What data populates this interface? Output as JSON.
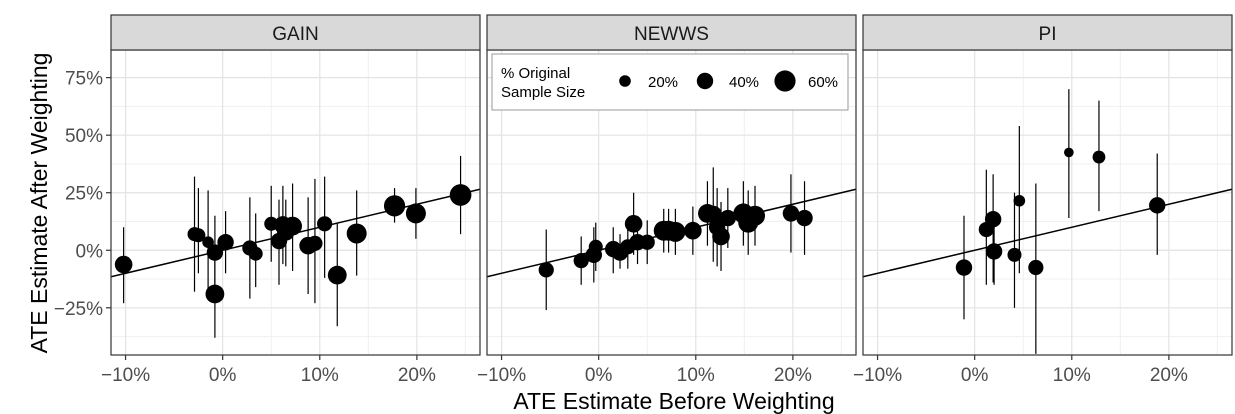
{
  "chart_data": {
    "type": "scatter",
    "xlabel": "ATE Estimate Before Weighting",
    "ylabel": "ATE Estimate After Weighting",
    "xlim": [
      -0.115,
      0.265
    ],
    "ylim": [
      -0.455,
      0.87
    ],
    "x_ticks": [
      {
        "value": -0.1,
        "label": "−10%"
      },
      {
        "value": 0.0,
        "label": "0%"
      },
      {
        "value": 0.1,
        "label": "10%"
      },
      {
        "value": 0.2,
        "label": "20%"
      }
    ],
    "y_ticks": [
      {
        "value": -0.25,
        "label": "−25%"
      },
      {
        "value": 0.0,
        "label": "0%"
      },
      {
        "value": 0.25,
        "label": "25%"
      },
      {
        "value": 0.5,
        "label": "50%"
      },
      {
        "value": 0.75,
        "label": "75%"
      }
    ],
    "grid": true,
    "legend": {
      "title_line1": "% Original",
      "title_line2": "Sample Size",
      "placement": "inside top-left of NEWWS panel",
      "entries": [
        {
          "size": 0.2,
          "label": "20%"
        },
        {
          "size": 0.4,
          "label": "40%"
        },
        {
          "size": 0.6,
          "label": "60%"
        }
      ]
    },
    "trend_line": {
      "intercept": 0.0,
      "slope": 1.0
    },
    "panels": [
      {
        "name": "GAIN",
        "points": [
          {
            "x": -0.102,
            "y": -0.062,
            "lo": -0.23,
            "hi": 0.1,
            "size": 0.45
          },
          {
            "x": -0.029,
            "y": 0.07,
            "lo": -0.18,
            "hi": 0.32,
            "size": 0.3
          },
          {
            "x": -0.025,
            "y": 0.065,
            "lo": -0.1,
            "hi": 0.27,
            "size": 0.3
          },
          {
            "x": -0.015,
            "y": 0.035,
            "lo": -0.18,
            "hi": 0.26,
            "size": 0.2
          },
          {
            "x": -0.008,
            "y": -0.19,
            "lo": -0.38,
            "hi": 0.01,
            "size": 0.5
          },
          {
            "x": -0.008,
            "y": -0.01,
            "lo": -0.16,
            "hi": 0.15,
            "size": 0.4
          },
          {
            "x": 0.003,
            "y": 0.035,
            "lo": -0.1,
            "hi": 0.17,
            "size": 0.4
          },
          {
            "x": 0.028,
            "y": 0.01,
            "lo": -0.21,
            "hi": 0.23,
            "size": 0.35
          },
          {
            "x": 0.034,
            "y": -0.015,
            "lo": -0.16,
            "hi": 0.16,
            "size": 0.3
          },
          {
            "x": 0.05,
            "y": 0.115,
            "lo": -0.05,
            "hi": 0.28,
            "size": 0.3
          },
          {
            "x": 0.058,
            "y": 0.04,
            "lo": -0.15,
            "hi": 0.22,
            "size": 0.4
          },
          {
            "x": 0.062,
            "y": 0.11,
            "lo": -0.06,
            "hi": 0.28,
            "size": 0.45
          },
          {
            "x": 0.065,
            "y": 0.08,
            "lo": -0.07,
            "hi": 0.22,
            "size": 0.45
          },
          {
            "x": 0.072,
            "y": 0.105,
            "lo": -0.09,
            "hi": 0.29,
            "size": 0.5
          },
          {
            "x": 0.088,
            "y": 0.02,
            "lo": -0.19,
            "hi": 0.23,
            "size": 0.45
          },
          {
            "x": 0.095,
            "y": 0.03,
            "lo": -0.23,
            "hi": 0.31,
            "size": 0.35
          },
          {
            "x": 0.105,
            "y": 0.115,
            "lo": -0.12,
            "hi": 0.32,
            "size": 0.35
          },
          {
            "x": 0.118,
            "y": -0.108,
            "lo": -0.33,
            "hi": 0.12,
            "size": 0.5
          },
          {
            "x": 0.138,
            "y": 0.073,
            "lo": -0.11,
            "hi": 0.26,
            "size": 0.55
          },
          {
            "x": 0.177,
            "y": 0.193,
            "lo": 0.12,
            "hi": 0.27,
            "size": 0.6
          },
          {
            "x": 0.199,
            "y": 0.16,
            "lo": 0.05,
            "hi": 0.27,
            "size": 0.55
          },
          {
            "x": 0.245,
            "y": 0.24,
            "lo": 0.07,
            "hi": 0.41,
            "size": 0.62
          }
        ]
      },
      {
        "name": "NEWWS",
        "points": [
          {
            "x": -0.054,
            "y": -0.085,
            "lo": -0.26,
            "hi": 0.09,
            "size": 0.35
          },
          {
            "x": -0.018,
            "y": -0.045,
            "lo": -0.15,
            "hi": 0.06,
            "size": 0.35
          },
          {
            "x": -0.005,
            "y": -0.02,
            "lo": -0.14,
            "hi": 0.1,
            "size": 0.4
          },
          {
            "x": -0.003,
            "y": 0.015,
            "lo": -0.09,
            "hi": 0.12,
            "size": 0.3
          },
          {
            "x": 0.015,
            "y": 0.005,
            "lo": -0.1,
            "hi": 0.1,
            "size": 0.4
          },
          {
            "x": 0.022,
            "y": -0.01,
            "lo": -0.08,
            "hi": 0.07,
            "size": 0.4
          },
          {
            "x": 0.03,
            "y": 0.015,
            "lo": -0.08,
            "hi": 0.11,
            "size": 0.35
          },
          {
            "x": 0.036,
            "y": 0.115,
            "lo": -0.02,
            "hi": 0.25,
            "size": 0.45
          },
          {
            "x": 0.04,
            "y": 0.035,
            "lo": -0.06,
            "hi": 0.13,
            "size": 0.4
          },
          {
            "x": 0.05,
            "y": 0.035,
            "lo": -0.06,
            "hi": 0.13,
            "size": 0.35
          },
          {
            "x": 0.067,
            "y": 0.085,
            "lo": -0.01,
            "hi": 0.18,
            "size": 0.55
          },
          {
            "x": 0.072,
            "y": 0.085,
            "lo": -0.01,
            "hi": 0.18,
            "size": 0.55
          },
          {
            "x": 0.079,
            "y": 0.08,
            "lo": -0.02,
            "hi": 0.18,
            "size": 0.55
          },
          {
            "x": 0.097,
            "y": 0.085,
            "lo": -0.02,
            "hi": 0.19,
            "size": 0.45
          },
          {
            "x": 0.112,
            "y": 0.16,
            "lo": 0.02,
            "hi": 0.3,
            "size": 0.5
          },
          {
            "x": 0.118,
            "y": 0.155,
            "lo": -0.05,
            "hi": 0.36,
            "size": 0.45
          },
          {
            "x": 0.122,
            "y": 0.1,
            "lo": -0.07,
            "hi": 0.27,
            "size": 0.4
          },
          {
            "x": 0.126,
            "y": 0.06,
            "lo": -0.09,
            "hi": 0.21,
            "size": 0.45
          },
          {
            "x": 0.133,
            "y": 0.14,
            "lo": 0.01,
            "hi": 0.27,
            "size": 0.4
          },
          {
            "x": 0.149,
            "y": 0.16,
            "lo": 0.02,
            "hi": 0.3,
            "size": 0.55
          },
          {
            "x": 0.154,
            "y": 0.12,
            "lo": -0.02,
            "hi": 0.26,
            "size": 0.55
          },
          {
            "x": 0.161,
            "y": 0.15,
            "lo": 0.02,
            "hi": 0.28,
            "size": 0.55
          },
          {
            "x": 0.198,
            "y": 0.16,
            "lo": -0.01,
            "hi": 0.33,
            "size": 0.4
          },
          {
            "x": 0.212,
            "y": 0.14,
            "lo": -0.02,
            "hi": 0.3,
            "size": 0.4
          }
        ]
      },
      {
        "name": "PI",
        "points": [
          {
            "x": -0.011,
            "y": -0.075,
            "lo": -0.3,
            "hi": 0.15,
            "size": 0.4
          },
          {
            "x": 0.012,
            "y": 0.09,
            "lo": -0.15,
            "hi": 0.35,
            "size": 0.35
          },
          {
            "x": 0.019,
            "y": 0.135,
            "lo": -0.14,
            "hi": 0.33,
            "size": 0.4
          },
          {
            "x": 0.02,
            "y": -0.005,
            "lo": -0.15,
            "hi": 0.14,
            "size": 0.4
          },
          {
            "x": 0.041,
            "y": -0.02,
            "lo": -0.25,
            "hi": 0.25,
            "size": 0.3
          },
          {
            "x": 0.046,
            "y": 0.215,
            "lo": -0.1,
            "hi": 0.54,
            "size": 0.2
          },
          {
            "x": 0.063,
            "y": -0.075,
            "lo": -0.45,
            "hi": 0.29,
            "size": 0.35
          },
          {
            "x": 0.097,
            "y": 0.425,
            "lo": 0.14,
            "hi": 0.7,
            "size": 0.12
          },
          {
            "x": 0.128,
            "y": 0.405,
            "lo": 0.17,
            "hi": 0.65,
            "size": 0.25
          },
          {
            "x": 0.188,
            "y": 0.195,
            "lo": -0.02,
            "hi": 0.42,
            "size": 0.4
          }
        ]
      }
    ]
  }
}
